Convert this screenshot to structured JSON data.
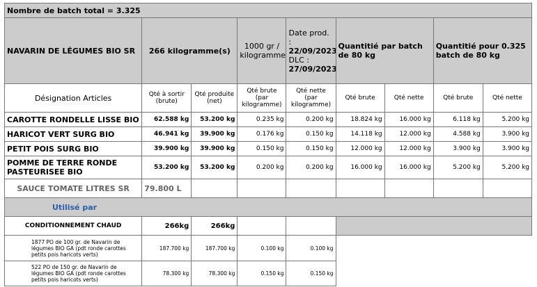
{
  "title": "Nombre de batch total = 3.325",
  "header": {
    "product": "NAVARIN DE LÉGUMES BIO SR",
    "total_qty": "266 kilogramme(s)",
    "unit": "1000 gr / kilogramme",
    "date_prod_label": "Date prod. :",
    "date_prod": "22/09/2023",
    "dlc_label": "DLC :",
    "dlc": "27/09/2023",
    "batch_header": "Quantitié par batch de 80 kg",
    "batch_total_header": "Quantitié pour 0.325 batch de 80 kg"
  },
  "subheader": {
    "designation": "Désignation Articles",
    "qte_sortir": "Qté à sortir (brute)",
    "qte_produite": "Qté produite (net)",
    "qte_brute_kg": "Qté brute (par kilogramme)",
    "qte_nette_kg": "Qté nette (par kilogramme)",
    "b_brute": "Qté brute",
    "b_nette": "Qté nette",
    "t_brute": "Qté brute",
    "t_nette": "Qté nette"
  },
  "ingredients": [
    [
      "CAROTTE RONDELLE LISSE BIO",
      "62.588 kg",
      "53.200 kg",
      "0.235 kg",
      "0.200 kg",
      "18.824 kg",
      "16.000 kg",
      "6.118 kg",
      "5.200 kg"
    ],
    [
      "HARICOT VERT SURG BIO",
      "46.941 kg",
      "39.900 kg",
      "0.176 kg",
      "0.150 kg",
      "14.118 kg",
      "12.000 kg",
      "4.588 kg",
      "3.900 kg"
    ],
    [
      "PETIT POIS SURG BIO",
      "39.900 kg",
      "39.900 kg",
      "0.150 kg",
      "0.150 kg",
      "12.000 kg",
      "12.000 kg",
      "3.900 kg",
      "3.900 kg"
    ],
    [
      "POMME DE TERRE RONDE PASTEURISEE BIO",
      "53.200 kg",
      "53.200 kg",
      "0.200 kg",
      "0.200 kg",
      "16.000 kg",
      "16.000 kg",
      "5.200 kg",
      "5.200 kg"
    ]
  ],
  "sauce": {
    "name": "SAUCE TOMATE LITRES SR",
    "qty": "79.800 L"
  },
  "used_by": "Utilisé par",
  "conditionnement": {
    "name": "CONDITIONNEMENT CHAUD",
    "q1": "266kg",
    "q2": "266kg"
  },
  "products": [
    [
      "1877 PO de 100 gr. de Navarin de légumes BIO GA (pdt ronde carottes petits pois haricots verts)",
      "187.700 kg",
      "187.700 kg",
      "0.100 kg",
      "0.100 kg"
    ],
    [
      "522 PO de 150 gr. de Navarin de légumes BIO GA (pdt ronde carottes petits pois haricots verts)",
      "78.300 kg",
      "78.300 kg",
      "0.150 kg",
      "0.150 kg"
    ]
  ]
}
